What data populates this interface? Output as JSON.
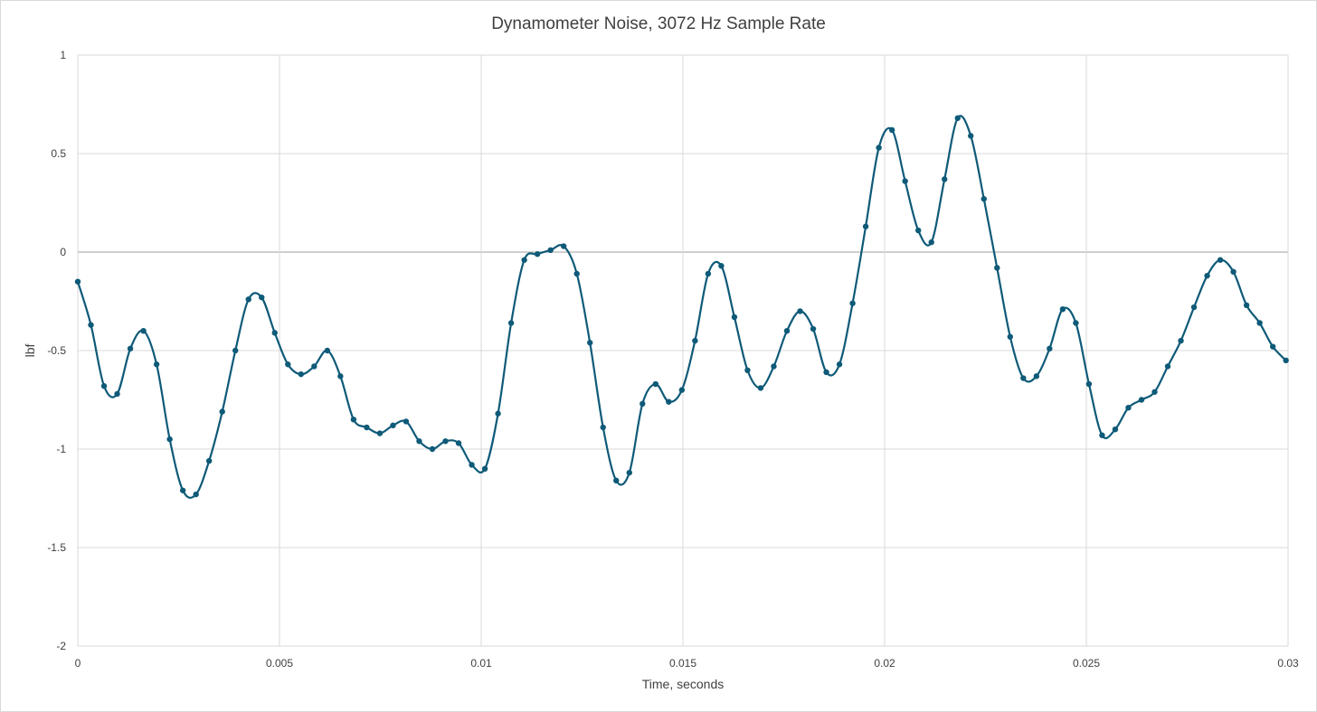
{
  "chart_data": {
    "type": "line",
    "title": "Dynamometer Noise, 3072 Hz Sample Rate",
    "xlabel": "Time, seconds",
    "ylabel": "lbf",
    "xlim": [
      0,
      0.03
    ],
    "ylim": [
      -2,
      1
    ],
    "x_ticks": [
      "0",
      "0.005",
      "0.01",
      "0.015",
      "0.02",
      "0.025",
      "0.03"
    ],
    "y_ticks": [
      "1",
      "0.5",
      "0",
      "-0.5",
      "-1",
      "-1.5",
      "-2"
    ],
    "x_tick_values": [
      0,
      0.005,
      0.01,
      0.015,
      0.02,
      0.025,
      0.03
    ],
    "y_tick_values": [
      1,
      0.5,
      0,
      -0.5,
      -1,
      -1.5,
      -2
    ],
    "grid": true,
    "smoothed": true,
    "markers": true,
    "series_color": "#0e5a78",
    "series": [
      {
        "values": [
          -0.15,
          -0.37,
          -0.68,
          -0.72,
          -0.49,
          -0.4,
          -0.57,
          -0.95,
          -1.21,
          -1.23,
          -1.06,
          -0.81,
          -0.5,
          -0.24,
          -0.23,
          -0.41,
          -0.57,
          -0.62,
          -0.58,
          -0.5,
          -0.63,
          -0.85,
          -0.89,
          -0.92,
          -0.88,
          -0.86,
          -0.96,
          -1.0,
          -0.96,
          -0.97,
          -1.08,
          -1.1,
          -0.82,
          -0.36,
          -0.04,
          -0.01,
          0.01,
          0.03,
          -0.11,
          -0.46,
          -0.89,
          -1.16,
          -1.12,
          -0.77,
          -0.67,
          -0.76,
          -0.7,
          -0.45,
          -0.11,
          -0.07,
          -0.33,
          -0.6,
          -0.69,
          -0.58,
          -0.4,
          -0.3,
          -0.39,
          -0.61,
          -0.57,
          -0.26,
          0.13,
          0.53,
          0.62,
          0.36,
          0.11,
          0.05,
          0.37,
          0.68,
          0.59,
          0.27,
          -0.08,
          -0.43,
          -0.64,
          -0.63,
          -0.49,
          -0.29,
          -0.36,
          -0.67,
          -0.93,
          -0.9,
          -0.79,
          -0.75,
          -0.71,
          -0.58,
          -0.45,
          -0.28,
          -0.12,
          -0.04,
          -0.1,
          -0.27,
          -0.36,
          -0.48,
          -0.55
        ]
      }
    ]
  }
}
